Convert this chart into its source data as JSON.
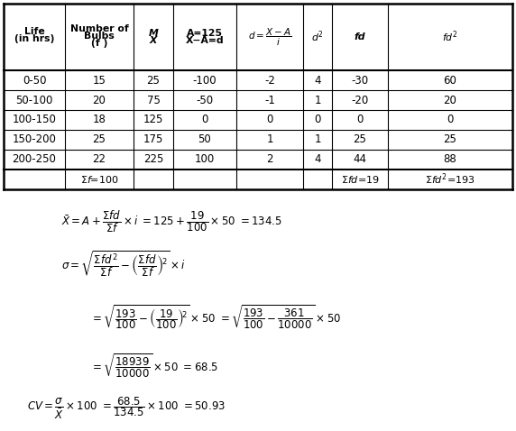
{
  "rows": [
    [
      "0-50",
      "15",
      "25",
      "-100",
      "-2",
      "4",
      "-30",
      "60"
    ],
    [
      "50-100",
      "20",
      "75",
      "-50",
      "-1",
      "1",
      "-20",
      "20"
    ],
    [
      "100-150",
      "18",
      "125",
      "0",
      "0",
      "0",
      "0",
      "0"
    ],
    [
      "150-200",
      "25",
      "175",
      "50",
      "1",
      "1",
      "25",
      "25"
    ],
    [
      "200-250",
      "22",
      "225",
      "100",
      "2",
      "4",
      "44",
      "88"
    ]
  ],
  "background_color": "#ffffff"
}
